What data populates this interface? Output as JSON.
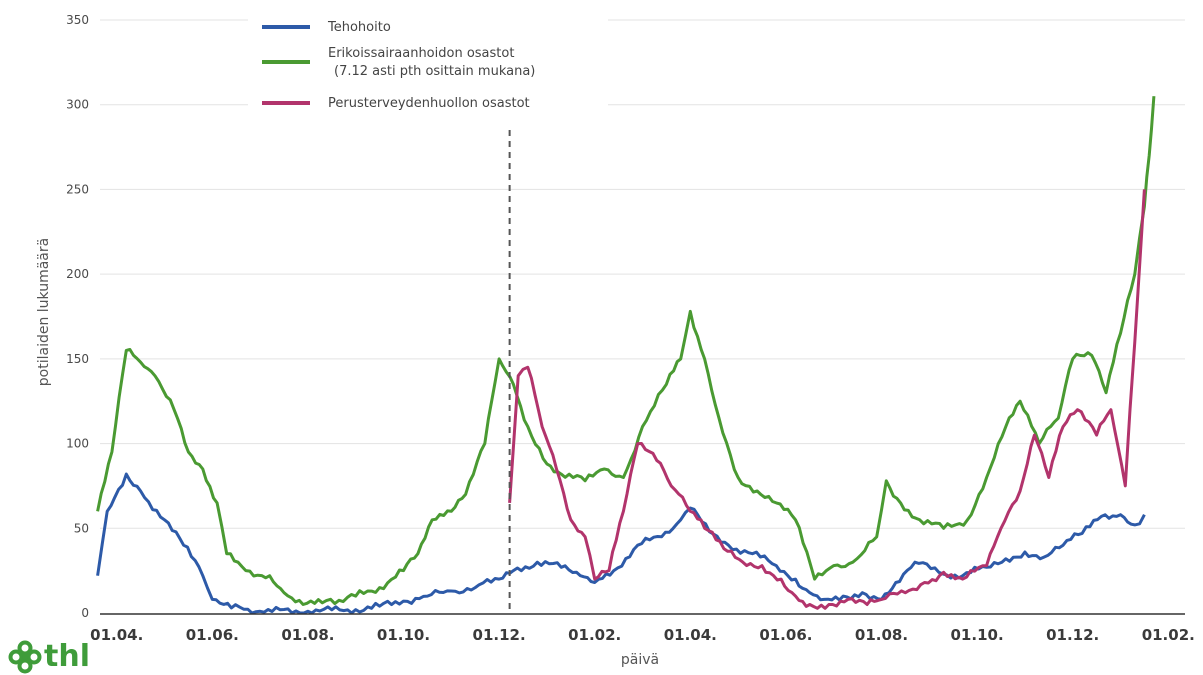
{
  "chart_data": {
    "type": "line",
    "xlabel": "päivä",
    "ylabel": "potilaiden lukumäärä",
    "ylim": [
      0,
      350
    ],
    "yticks": [
      0,
      50,
      100,
      150,
      200,
      250,
      300,
      350
    ],
    "x_unit": "months from 01.04. (first year)",
    "xlim": [
      -0.35,
      22.35
    ],
    "xticks": [
      {
        "x": 0,
        "label": "01.04."
      },
      {
        "x": 2,
        "label": "01.06."
      },
      {
        "x": 4,
        "label": "01.08."
      },
      {
        "x": 6,
        "label": "01.10."
      },
      {
        "x": 8,
        "label": "01.12."
      },
      {
        "x": 10,
        "label": "01.02."
      },
      {
        "x": 12,
        "label": "01.04."
      },
      {
        "x": 14,
        "label": "01.06."
      },
      {
        "x": 16,
        "label": "01.08."
      },
      {
        "x": 18,
        "label": "01.10."
      },
      {
        "x": 20,
        "label": "01.12."
      },
      {
        "x": 22,
        "label": "01.02."
      }
    ],
    "vline_x": 8.22,
    "grid": "horizontal",
    "legend_position": "top-left",
    "series": [
      {
        "name": "Tehohoito",
        "color": "#2d5aa8",
        "points": [
          [
            -0.4,
            22
          ],
          [
            -0.2,
            60
          ],
          [
            0.2,
            82
          ],
          [
            0.5,
            72
          ],
          [
            1.0,
            55
          ],
          [
            1.4,
            40
          ],
          [
            1.8,
            22
          ],
          [
            2.0,
            8
          ],
          [
            2.4,
            3
          ],
          [
            3.0,
            1
          ],
          [
            4.0,
            1
          ],
          [
            5.0,
            2
          ],
          [
            5.5,
            4
          ],
          [
            6.0,
            7
          ],
          [
            6.5,
            10
          ],
          [
            7.0,
            13
          ],
          [
            7.5,
            15
          ],
          [
            8.0,
            20
          ],
          [
            8.3,
            25
          ],
          [
            8.8,
            30
          ],
          [
            9.3,
            27
          ],
          [
            9.7,
            22
          ],
          [
            10.0,
            18
          ],
          [
            10.4,
            25
          ],
          [
            10.9,
            40
          ],
          [
            11.4,
            45
          ],
          [
            11.8,
            55
          ],
          [
            12.0,
            62
          ],
          [
            12.4,
            48
          ],
          [
            12.8,
            40
          ],
          [
            13.3,
            35
          ],
          [
            13.8,
            28
          ],
          [
            14.2,
            20
          ],
          [
            14.5,
            12
          ],
          [
            14.8,
            8
          ],
          [
            15.2,
            10
          ],
          [
            15.6,
            12
          ],
          [
            16.0,
            8
          ],
          [
            16.3,
            18
          ],
          [
            16.7,
            30
          ],
          [
            17.2,
            24
          ],
          [
            17.7,
            22
          ],
          [
            18.2,
            27
          ],
          [
            18.6,
            32
          ],
          [
            19.0,
            36
          ],
          [
            19.4,
            33
          ],
          [
            19.8,
            40
          ],
          [
            20.2,
            47
          ],
          [
            20.6,
            57
          ],
          [
            21.0,
            58
          ],
          [
            21.3,
            52
          ],
          [
            21.5,
            58
          ]
        ]
      },
      {
        "name": "Erikoissairaanhoidon osastot\n(7.12 asti pth osittain mukana)",
        "color": "#4a9a32",
        "points": [
          [
            -0.4,
            60
          ],
          [
            -0.1,
            95
          ],
          [
            0.2,
            155
          ],
          [
            0.5,
            148
          ],
          [
            0.8,
            140
          ],
          [
            1.2,
            120
          ],
          [
            1.5,
            95
          ],
          [
            1.8,
            85
          ],
          [
            2.1,
            65
          ],
          [
            2.3,
            35
          ],
          [
            2.7,
            25
          ],
          [
            3.2,
            22
          ],
          [
            3.5,
            12
          ],
          [
            3.9,
            5
          ],
          [
            4.3,
            6
          ],
          [
            5.0,
            10
          ],
          [
            5.5,
            15
          ],
          [
            6.0,
            25
          ],
          [
            6.3,
            35
          ],
          [
            6.6,
            55
          ],
          [
            7.0,
            60
          ],
          [
            7.3,
            70
          ],
          [
            7.7,
            100
          ],
          [
            8.0,
            150
          ],
          [
            8.3,
            135
          ],
          [
            8.6,
            110
          ],
          [
            9.0,
            88
          ],
          [
            9.3,
            82
          ],
          [
            9.8,
            78
          ],
          [
            10.2,
            85
          ],
          [
            10.6,
            80
          ],
          [
            11.0,
            110
          ],
          [
            11.5,
            135
          ],
          [
            11.8,
            150
          ],
          [
            12.0,
            178
          ],
          [
            12.3,
            150
          ],
          [
            12.6,
            115
          ],
          [
            13.0,
            80
          ],
          [
            13.4,
            72
          ],
          [
            13.8,
            65
          ],
          [
            14.2,
            55
          ],
          [
            14.6,
            20
          ],
          [
            15.0,
            28
          ],
          [
            15.4,
            30
          ],
          [
            15.9,
            45
          ],
          [
            16.1,
            78
          ],
          [
            16.4,
            65
          ],
          [
            16.8,
            55
          ],
          [
            17.3,
            50
          ],
          [
            17.8,
            55
          ],
          [
            18.2,
            80
          ],
          [
            18.6,
            110
          ],
          [
            18.9,
            125
          ],
          [
            19.3,
            100
          ],
          [
            19.7,
            115
          ],
          [
            20.0,
            150
          ],
          [
            20.4,
            152
          ],
          [
            20.7,
            130
          ],
          [
            21.0,
            165
          ],
          [
            21.3,
            200
          ],
          [
            21.5,
            240
          ],
          [
            21.6,
            270
          ],
          [
            21.7,
            305
          ]
        ]
      },
      {
        "name": "Perusterveydenhuollon osastot",
        "color": "#b2346c",
        "points": [
          [
            8.22,
            65
          ],
          [
            8.4,
            140
          ],
          [
            8.6,
            145
          ],
          [
            8.9,
            110
          ],
          [
            9.2,
            85
          ],
          [
            9.5,
            55
          ],
          [
            9.8,
            45
          ],
          [
            10.0,
            20
          ],
          [
            10.3,
            25
          ],
          [
            10.6,
            60
          ],
          [
            10.9,
            100
          ],
          [
            11.3,
            90
          ],
          [
            11.6,
            75
          ],
          [
            12.0,
            60
          ],
          [
            12.3,
            50
          ],
          [
            12.7,
            38
          ],
          [
            13.1,
            30
          ],
          [
            13.5,
            28
          ],
          [
            13.9,
            20
          ],
          [
            14.2,
            10
          ],
          [
            14.5,
            5
          ],
          [
            14.9,
            5
          ],
          [
            15.3,
            8
          ],
          [
            15.7,
            5
          ],
          [
            16.0,
            8
          ],
          [
            16.5,
            12
          ],
          [
            16.9,
            18
          ],
          [
            17.3,
            24
          ],
          [
            17.7,
            20
          ],
          [
            18.2,
            28
          ],
          [
            18.5,
            50
          ],
          [
            18.9,
            72
          ],
          [
            19.2,
            105
          ],
          [
            19.5,
            80
          ],
          [
            19.8,
            110
          ],
          [
            20.1,
            120
          ],
          [
            20.5,
            105
          ],
          [
            20.8,
            120
          ],
          [
            21.1,
            75
          ],
          [
            21.3,
            160
          ],
          [
            21.5,
            250
          ]
        ]
      }
    ]
  },
  "logo": {
    "text": "thl",
    "color": "#3f9c3a"
  }
}
